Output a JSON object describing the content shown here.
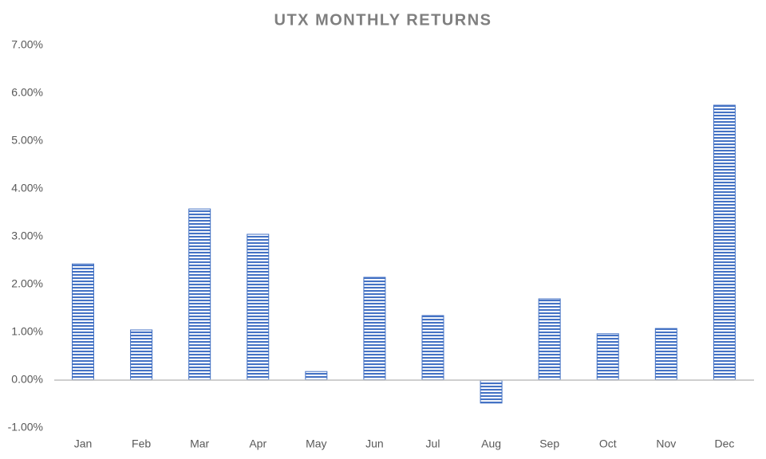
{
  "chart_data": {
    "type": "bar",
    "title": "UTX MONTHLY RETURNS",
    "categories": [
      "Jan",
      "Feb",
      "Mar",
      "Apr",
      "May",
      "Jun",
      "Jul",
      "Aug",
      "Sep",
      "Oct",
      "Nov",
      "Dec"
    ],
    "values": [
      2.43,
      1.05,
      3.58,
      3.05,
      0.18,
      2.15,
      1.35,
      -0.48,
      1.7,
      0.97,
      1.08,
      5.75
    ],
    "color": "#4472c4",
    "ylim": [
      -1,
      7
    ],
    "yticks": [
      {
        "value": -1,
        "label": "-1.00%"
      },
      {
        "value": 0,
        "label": "0.00%"
      },
      {
        "value": 1,
        "label": "1.00%"
      },
      {
        "value": 2,
        "label": "2.00%"
      },
      {
        "value": 3,
        "label": "3.00%"
      },
      {
        "value": 4,
        "label": "4.00%"
      },
      {
        "value": 5,
        "label": "5.00%"
      },
      {
        "value": 6,
        "label": "6.00%"
      },
      {
        "value": 7,
        "label": "7.00%"
      }
    ],
    "grid": false
  }
}
